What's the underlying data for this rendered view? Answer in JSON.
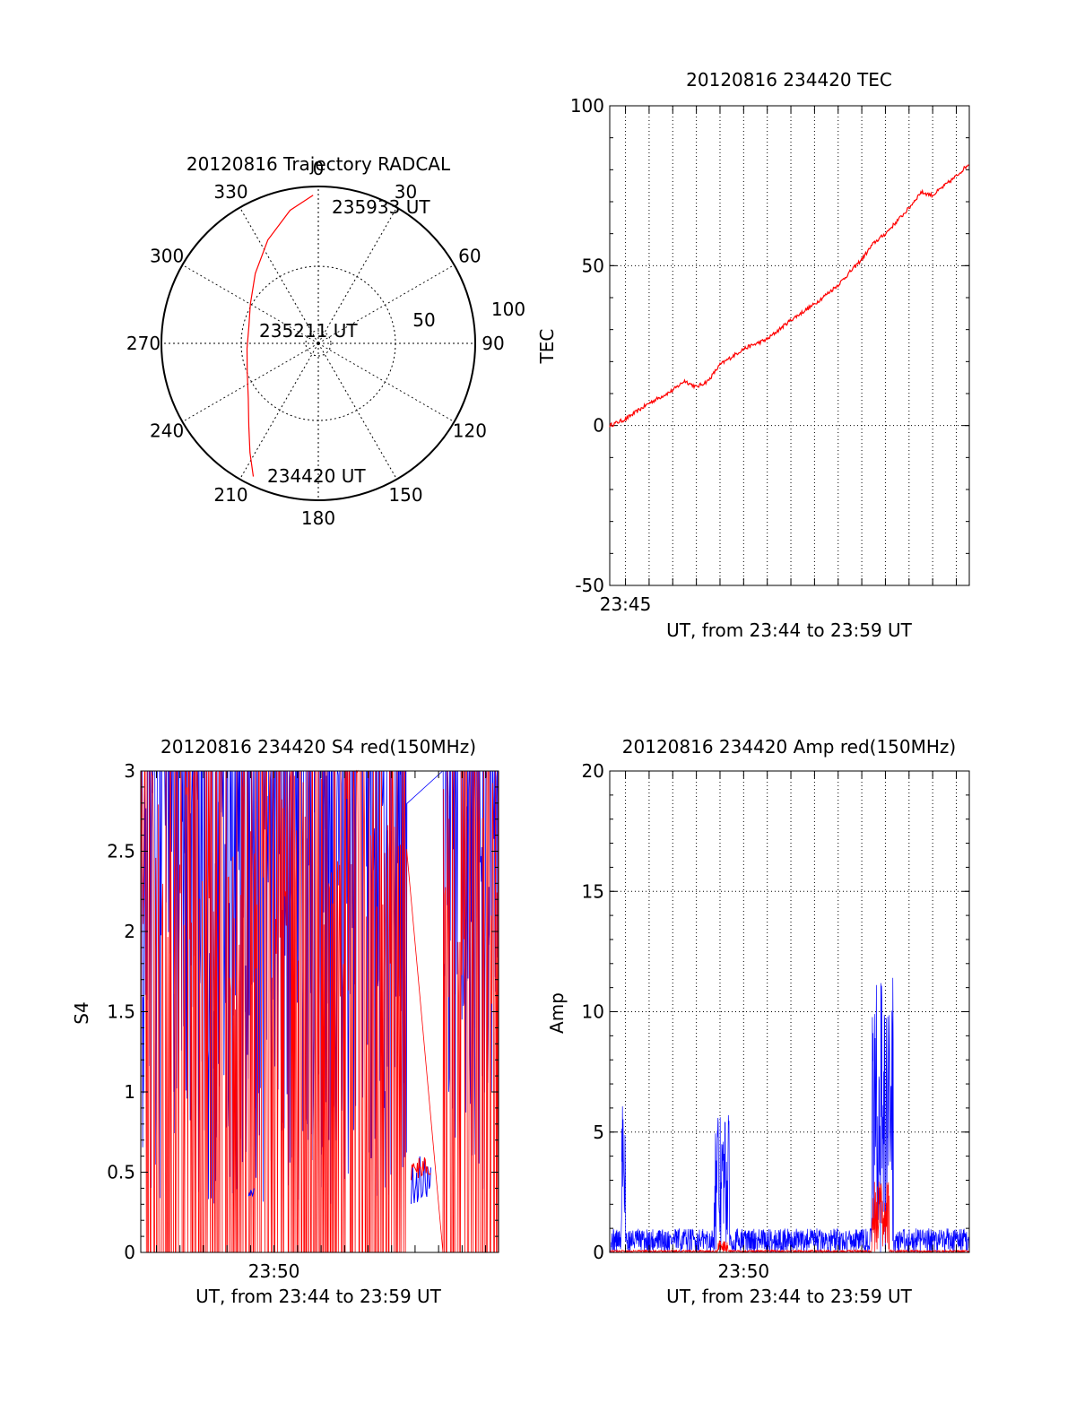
{
  "colors": {
    "red": "#ff0000",
    "blue": "#0000ff",
    "axis": "#000000",
    "grid": "#000000"
  },
  "chart_data": [
    {
      "id": "trajectory",
      "type": "polar",
      "title": "20120816 Trajectory RADCAL",
      "angle_labels": [
        "0",
        "30",
        "60",
        "90",
        "120",
        "150",
        "180",
        "210",
        "240",
        "270",
        "300",
        "330"
      ],
      "radius_labels": [
        "50",
        "100"
      ],
      "rlim": [
        0,
        100
      ],
      "grid": true,
      "series": [
        {
          "color": "red",
          "points": [
            {
              "azimuth": 206,
              "elevation": 5
            },
            {
              "azimuth": 212,
              "elevation": 16
            },
            {
              "azimuth": 220,
              "elevation": 28
            },
            {
              "azimuth": 232,
              "elevation": 39
            },
            {
              "azimuth": 248,
              "elevation": 46
            },
            {
              "azimuth": 266,
              "elevation": 49
            },
            {
              "azimuth": 284,
              "elevation": 49
            },
            {
              "azimuth": 300,
              "elevation": 45
            },
            {
              "azimuth": 318,
              "elevation": 36
            },
            {
              "azimuth": 334,
              "elevation": 24
            },
            {
              "azimuth": 348,
              "elevation": 12
            },
            {
              "azimuth": 358,
              "elevation": 5
            }
          ]
        }
      ],
      "annotations": [
        {
          "text": "235933 UT",
          "azimuth": 12,
          "elevation": 8
        },
        {
          "text": "235211 UT",
          "azimuth": 0,
          "elevation": 90
        },
        {
          "text": "234420 UT",
          "azimuth": 190,
          "elevation": 10
        }
      ]
    },
    {
      "id": "tec",
      "type": "line",
      "title": "20120816 234420 TEC",
      "ylabel": "TEC",
      "xlabel": "UT, from 23:44 to 23:59 UT",
      "xlim": [
        "23:44:20",
        "23:59:33"
      ],
      "ylim": [
        -50,
        100
      ],
      "yticks": [
        "-50",
        "0",
        "50",
        "100"
      ],
      "xtick_labels": [
        {
          "label": "23:45",
          "time": "23:45:00"
        }
      ],
      "grid": true,
      "series": [
        {
          "color": "red",
          "x": [
            "23:44:20",
            "23:45:00",
            "23:46:00",
            "23:47:00",
            "23:47:30",
            "23:48:00",
            "23:48:30",
            "23:49:00",
            "23:50:00",
            "23:51:00",
            "23:52:00",
            "23:53:00",
            "23:53:30",
            "23:54:00",
            "23:55:00",
            "23:55:30",
            "23:56:00",
            "23:56:30",
            "23:57:00",
            "23:57:30",
            "23:58:00",
            "23:59:00",
            "23:59:33"
          ],
          "y": [
            0,
            2,
            7,
            11,
            14,
            12,
            14,
            19,
            24,
            27,
            33,
            38,
            41,
            44,
            52,
            57,
            60,
            64,
            68,
            73,
            72,
            78,
            82
          ]
        }
      ]
    },
    {
      "id": "s4",
      "type": "line",
      "title": "20120816 234420 S4 red(150MHz)",
      "ylabel": "S4",
      "xlabel": "UT, from 23:44 to 23:59 UT",
      "xlim": [
        "23:44:20",
        "23:59:33"
      ],
      "ylim": [
        0,
        3
      ],
      "yticks": [
        "0",
        "0.5",
        "1",
        "1.5",
        "2",
        "2.5",
        "3"
      ],
      "xtick_labels": [
        {
          "label": "23:50",
          "time": "23:50:00"
        }
      ],
      "grid": false,
      "series": [
        {
          "color": "blue",
          "min_y": 0.3
        },
        {
          "color": "red",
          "min_y": 0
        }
      ],
      "features": [
        {
          "x": [
            "23:48:55",
            "23:49:10"
          ],
          "y": [
            0.35,
            0.4
          ],
          "color": "blue"
        },
        {
          "x": [
            "23:55:50",
            "23:56:40"
          ],
          "y": [
            0.3,
            0.6
          ],
          "color": "blue"
        },
        {
          "x": [
            "23:55:50",
            "23:56:40"
          ],
          "y": [
            0.45,
            0.6
          ],
          "color": "red"
        }
      ],
      "gap": [
        "23:55:40",
        "23:57:10"
      ]
    },
    {
      "id": "amp",
      "type": "line",
      "title": "20120816 234420 Amp red(150MHz)",
      "ylabel": "Amp",
      "xlabel": "UT, from 23:44 to 23:59 UT",
      "xlim": [
        "23:44:20",
        "23:59:33"
      ],
      "ylim": [
        0,
        20
      ],
      "yticks": [
        "0",
        "5",
        "10",
        "15",
        "20"
      ],
      "xtick_labels": [
        {
          "label": "23:50",
          "time": "23:50:00"
        }
      ],
      "grid": true,
      "series": [
        {
          "color": "blue",
          "baseline": 0.5,
          "bursts": [
            {
              "start": "23:44:50",
              "end": "23:45:00",
              "peak": 8.4
            },
            {
              "start": "23:48:45",
              "end": "23:49:25",
              "peak": 5.8
            },
            {
              "start": "23:55:25",
              "end": "23:56:20",
              "peak": 11.5
            }
          ]
        },
        {
          "color": "red",
          "baseline": 0.1,
          "bursts": [
            {
              "start": "23:48:55",
              "end": "23:49:20",
              "peak": 0.5
            },
            {
              "start": "23:55:25",
              "end": "23:56:10",
              "peak": 3.0
            }
          ]
        }
      ]
    }
  ]
}
